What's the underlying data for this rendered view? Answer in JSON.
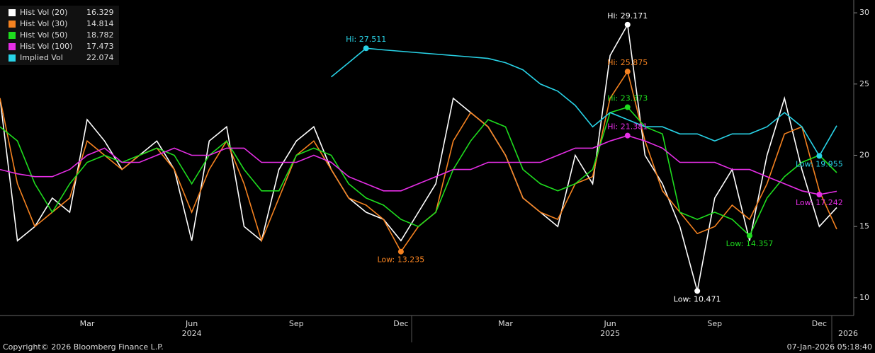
{
  "chart_data": {
    "type": "line",
    "categories": [
      null,
      null,
      null,
      null,
      null,
      "Mar",
      null,
      null,
      null,
      null,
      null,
      "Jun",
      null,
      null,
      null,
      null,
      null,
      "Sep",
      null,
      null,
      null,
      null,
      null,
      "Dec",
      null,
      null,
      null,
      null,
      null,
      "Mar",
      null,
      null,
      null,
      null,
      null,
      "Jun",
      null,
      null,
      null,
      null,
      null,
      "Sep",
      null,
      null,
      null,
      null,
      null,
      "Dec",
      null
    ],
    "year_labels": [
      null,
      null,
      null,
      null,
      null,
      null,
      null,
      null,
      null,
      null,
      null,
      "2024",
      null,
      null,
      null,
      null,
      null,
      null,
      null,
      null,
      null,
      null,
      null,
      null,
      null,
      null,
      null,
      null,
      null,
      null,
      null,
      null,
      null,
      null,
      null,
      "2025",
      null,
      null,
      null,
      null,
      null,
      null,
      null,
      null,
      null,
      null,
      null,
      null,
      "2026"
    ],
    "series": [
      {
        "name": "Hist Vol (20)",
        "color": "#ffffff",
        "hi_label": "Hi: 29.171",
        "low_label": "Low: 10.471",
        "values": [
          24,
          14,
          15,
          17,
          16,
          22.5,
          21,
          19,
          20,
          21,
          19,
          14,
          21,
          22,
          15,
          14,
          19,
          21,
          22,
          19,
          17,
          16,
          15.5,
          14,
          16,
          18,
          24,
          23,
          22,
          20,
          17,
          16,
          15,
          20,
          18,
          27,
          29.171,
          20,
          18,
          15,
          10.471,
          17,
          19,
          14,
          20,
          24,
          19,
          15,
          16.329
        ]
      },
      {
        "name": "Hist Vol (30)",
        "color": "#f58220",
        "hi_label": "Hi: 25.875",
        "low_label": "Low: 13.235",
        "values": [
          24,
          18,
          15,
          16,
          17,
          21,
          20,
          19,
          20,
          20.5,
          19,
          16,
          19,
          21,
          18,
          14,
          17,
          20,
          21,
          19,
          17,
          16.5,
          15.5,
          13.235,
          15,
          16,
          21,
          23,
          22,
          20,
          17,
          16,
          15.5,
          18,
          18.5,
          24,
          25.875,
          21,
          17.5,
          16,
          14.5,
          15,
          16.5,
          15.5,
          18,
          21.5,
          22,
          17.5,
          14.814
        ]
      },
      {
        "name": "Hist Vol (50)",
        "color": "#1edc1e",
        "hi_label": "Hi: 23.373",
        "low_label": "Low: 14.357",
        "values": [
          22,
          21,
          18,
          16,
          18,
          19.5,
          20,
          19.5,
          20,
          20.5,
          20,
          18,
          20,
          21,
          19,
          17.5,
          17.5,
          20,
          20.5,
          20,
          18,
          17,
          16.5,
          15.5,
          15,
          16,
          19,
          21,
          22.5,
          22,
          19,
          18,
          17.5,
          18,
          19,
          23,
          23.373,
          22,
          21.5,
          16,
          15.5,
          16,
          15.5,
          14.357,
          17,
          18.5,
          19.5,
          20,
          18.782
        ]
      },
      {
        "name": "Hist Vol (100)",
        "color": "#e62ee6",
        "hi_label": "Hi: 21.381",
        "low_label": "Low: 17.242",
        "values": [
          19,
          18.7,
          18.5,
          18.5,
          19,
          20,
          20.5,
          19.5,
          19.5,
          20,
          20.5,
          20,
          20,
          20.5,
          20.5,
          19.5,
          19.5,
          19.5,
          20,
          19.5,
          18.5,
          18,
          17.5,
          17.5,
          18,
          18.5,
          19,
          19,
          19.5,
          19.5,
          19.5,
          19.5,
          20,
          20.5,
          20.5,
          21,
          21.381,
          21,
          20.5,
          19.5,
          19.5,
          19.5,
          19,
          19,
          18.5,
          18,
          17.5,
          17.242,
          17.473
        ]
      },
      {
        "name": "Implied Vol",
        "color": "#28d2e6",
        "hi_label": "Hi: 27.511",
        "low_label": "Low: 19.955",
        "values": [
          null,
          null,
          null,
          null,
          null,
          null,
          null,
          null,
          null,
          null,
          null,
          null,
          null,
          null,
          null,
          null,
          null,
          null,
          null,
          25.5,
          26.5,
          27.511,
          27.4,
          27.3,
          27.2,
          27.1,
          27.0,
          26.9,
          26.8,
          26.5,
          26,
          25,
          24.5,
          23.5,
          22,
          23,
          22.5,
          22,
          22,
          21.5,
          21.5,
          21,
          21.5,
          21.5,
          22,
          23,
          22,
          19.955,
          22.074
        ]
      }
    ],
    "ylim": [
      8.8,
      30.9
    ],
    "yticks": [
      10,
      15,
      20,
      25,
      30
    ],
    "footer_left": "Copyright© 2026 Bloomberg Finance L.P.",
    "footer_right": "07-Jan-2026 05:18:40"
  }
}
